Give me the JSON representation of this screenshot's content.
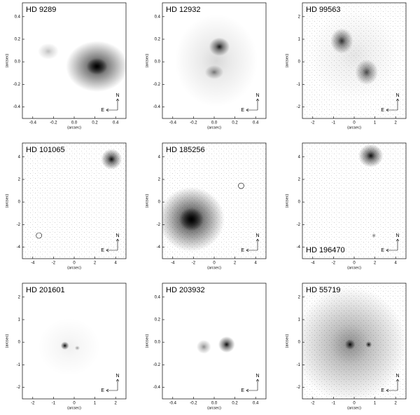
{
  "panels": [
    {
      "name": "HD 9289",
      "xticks": [
        "-0.4",
        "-0.2",
        "0.0",
        "0.2",
        "0.4"
      ],
      "yticks": [
        "0.4",
        "0.2",
        "0.0",
        "-0.2",
        "-0.4"
      ],
      "xlabel": "(arcsec)",
      "ylabel": "(arcsec)",
      "north": "N",
      "east": "E"
    },
    {
      "name": "HD 12932",
      "xticks": [
        "-0.4",
        "-0.2",
        "0.0",
        "0.2",
        "0.4"
      ],
      "yticks": [
        "0.4",
        "0.2",
        "0.0",
        "-0.2",
        "-0.4"
      ],
      "xlabel": "(arcsec)",
      "ylabel": "(arcsec)",
      "north": "N",
      "east": "E"
    },
    {
      "name": "HD 99563",
      "xticks": [
        "-2",
        "-1",
        "0",
        "1",
        "2"
      ],
      "yticks": [
        "2",
        "1",
        "0",
        "-1",
        "-2"
      ],
      "xlabel": "(arcsec)",
      "ylabel": "(arcsec)",
      "north": "N",
      "east": "E"
    },
    {
      "name": "HD 101065",
      "xticks": [
        "-4",
        "-2",
        "0",
        "2",
        "4"
      ],
      "yticks": [
        "4",
        "2",
        "0",
        "-2",
        "-4"
      ],
      "xlabel": "(arcsec)",
      "ylabel": "(arcsec)",
      "north": "N",
      "east": "E"
    },
    {
      "name": "HD 185256",
      "xticks": [
        "-4",
        "-2",
        "0",
        "2",
        "4"
      ],
      "yticks": [
        "4",
        "2",
        "0",
        "-2",
        "-4"
      ],
      "xlabel": "(arcsec)",
      "ylabel": "(arcsec)",
      "north": "N",
      "east": "E"
    },
    {
      "name": "HD 196470",
      "xticks": [
        "-4",
        "-2",
        "0",
        "2",
        "4"
      ],
      "yticks": [
        "4",
        "2",
        "0",
        "-2",
        "-4"
      ],
      "xlabel": "(arcsec)",
      "ylabel": "(arcsec)",
      "north": "N",
      "east": "E"
    },
    {
      "name": "HD 201601",
      "xticks": [
        "-2",
        "-1",
        "0",
        "1",
        "2"
      ],
      "yticks": [
        "2",
        "1",
        "0",
        "-1",
        "-2"
      ],
      "xlabel": "(arcsec)",
      "ylabel": "(arcsec)",
      "north": "N",
      "east": "E"
    },
    {
      "name": "HD 203932",
      "xticks": [
        "-0.4",
        "-0.2",
        "0.0",
        "0.2",
        "0.4"
      ],
      "yticks": [
        "0.4",
        "0.2",
        "0.0",
        "-0.2",
        "-0.4"
      ],
      "xlabel": "(arcsec)",
      "ylabel": "(arcsec)",
      "north": "N",
      "east": "E"
    },
    {
      "name": "HD 55719",
      "xticks": [
        "-2",
        "-1",
        "0",
        "1",
        "2"
      ],
      "yticks": [
        "2",
        "1",
        "0",
        "-1",
        "-2"
      ],
      "xlabel": "(arcsec)",
      "ylabel": "(arcsec)",
      "north": "N",
      "east": "E"
    }
  ]
}
